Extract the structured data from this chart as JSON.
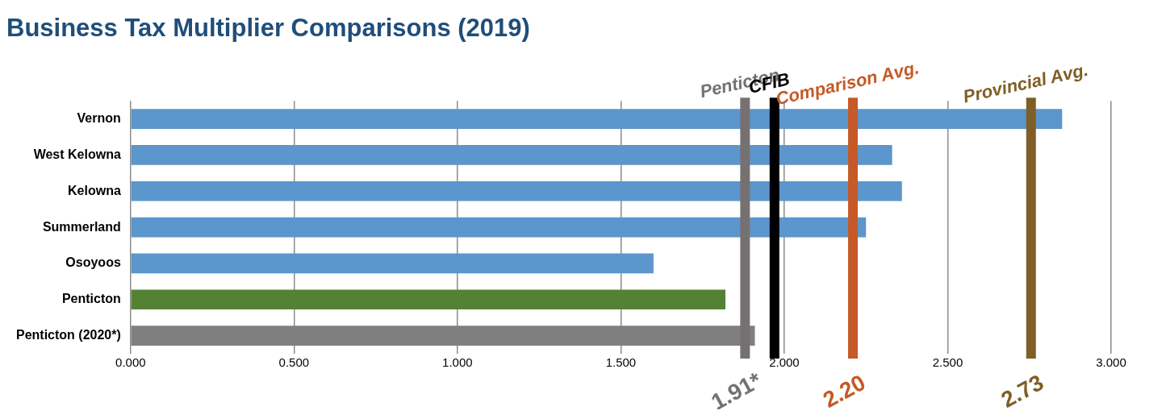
{
  "chart_data": {
    "type": "bar",
    "orientation": "horizontal",
    "title": "Business Tax Multiplier Comparisons (2019)",
    "categories": [
      "Vernon",
      "West Kelowna",
      "Kelowna",
      "Summerland",
      "Osoyoos",
      "Penticton",
      "Penticton (2020*)"
    ],
    "values": [
      2.85,
      2.33,
      2.36,
      2.25,
      1.6,
      1.82,
      1.91
    ],
    "colors": [
      "#5b96cc",
      "#5b96cc",
      "#5b96cc",
      "#5b96cc",
      "#5b96cc",
      "#548235",
      "#7f7f7f"
    ],
    "xlim": [
      0,
      3
    ],
    "xticks": [
      {
        "value": 0,
        "label": "0.000"
      },
      {
        "value": 0.5,
        "label": "0.500"
      },
      {
        "value": 1,
        "label": "1.000"
      },
      {
        "value": 1.5,
        "label": "1.500"
      },
      {
        "value": 2,
        "label": "2.000"
      },
      {
        "value": 2.5,
        "label": "2.500"
      },
      {
        "value": 3,
        "label": "3.000"
      }
    ],
    "grid": "x",
    "legend": false,
    "ref_lines": [
      {
        "axis": "x",
        "value": 1.88,
        "label": "Penticton",
        "color": "#767171"
      },
      {
        "axis": "x",
        "value": 1.97,
        "label": "CFIB",
        "color": "#000000"
      },
      {
        "axis": "x",
        "value": 2.21,
        "label": "Comparison Avg.",
        "color": "#c55a28"
      },
      {
        "axis": "x",
        "value": 2.755,
        "label": "Provincial Avg.",
        "color": "#7f5f26"
      }
    ],
    "annotations": [
      "1.91*",
      "2.20",
      "2.73"
    ]
  }
}
